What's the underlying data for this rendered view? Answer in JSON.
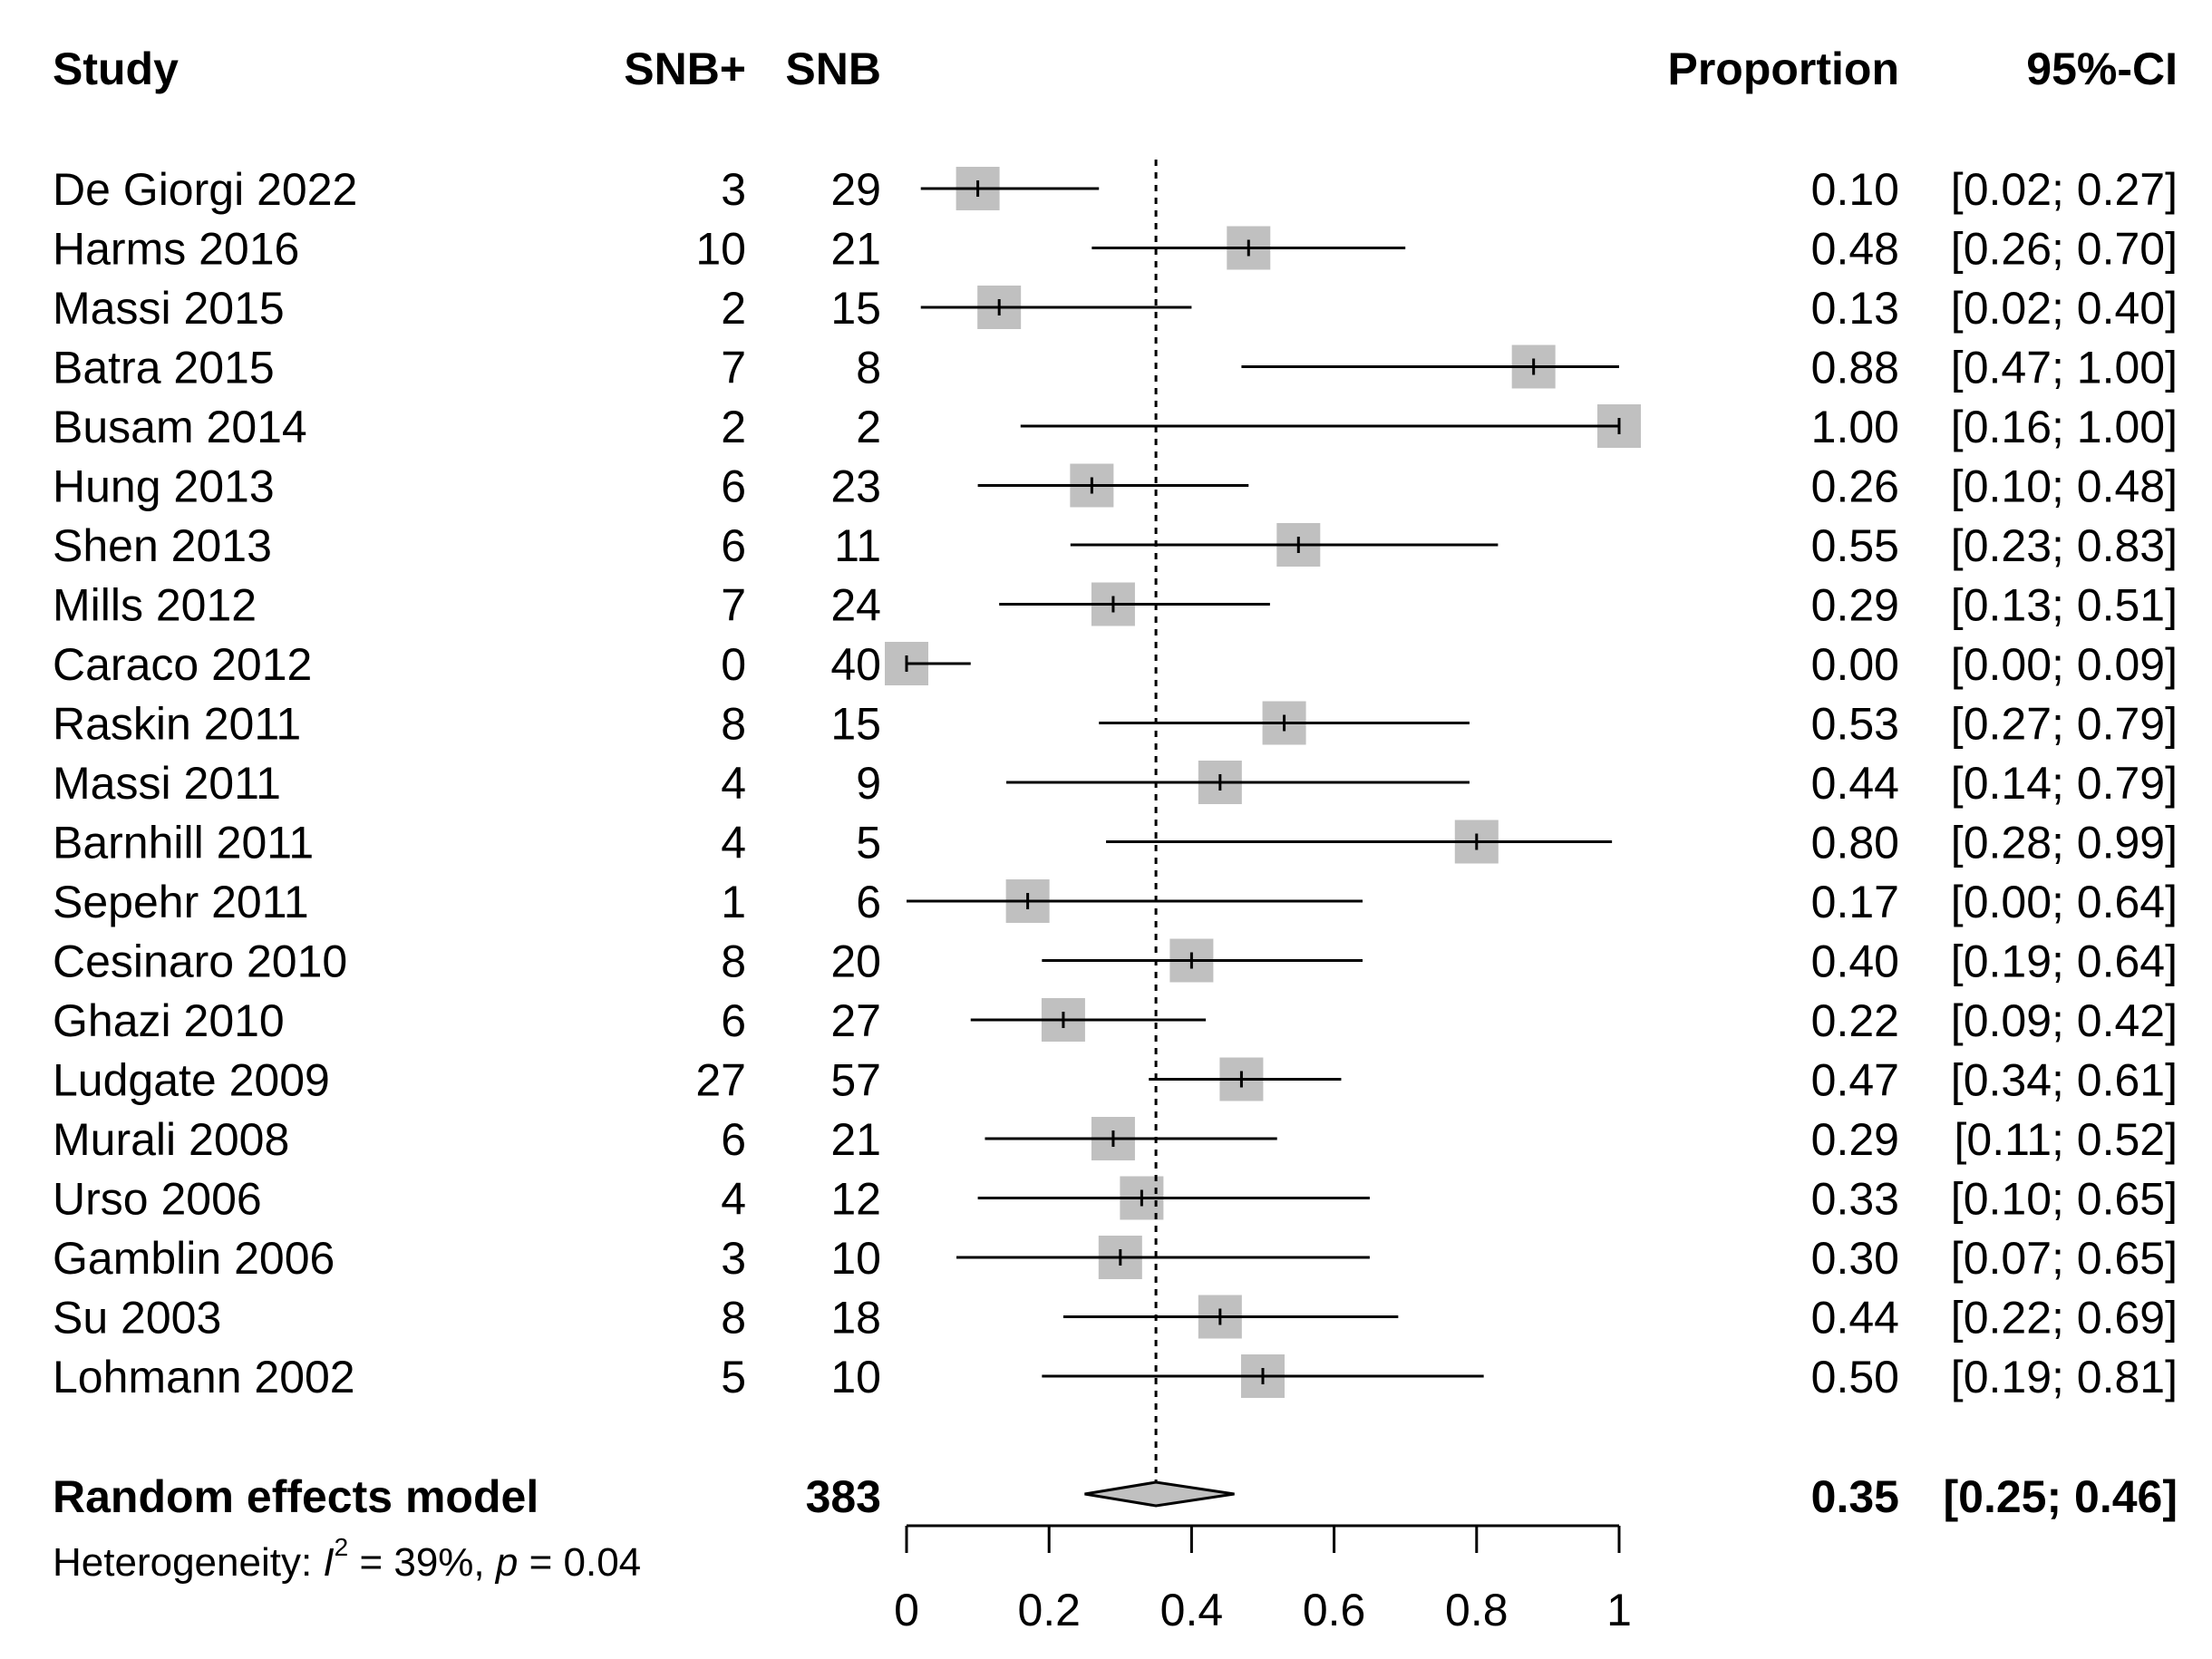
{
  "chart_data": {
    "type": "forest",
    "title": "",
    "headers": {
      "study": "Study",
      "events": "SNB+",
      "total": "SNB",
      "proportion": "Proportion",
      "ci": "95%-CI"
    },
    "studies": [
      {
        "study": "De Giorgi 2022",
        "events": "3",
        "total": "29",
        "prop_text": "0.10",
        "ci_text": "[0.02; 0.27]",
        "p": 0.1,
        "lo": 0.02,
        "hi": 0.27,
        "weight": 1.0
      },
      {
        "study": "Harms 2016",
        "events": "10",
        "total": "21",
        "prop_text": "0.48",
        "ci_text": "[0.26; 0.70]",
        "p": 0.48,
        "lo": 0.26,
        "hi": 0.7,
        "weight": 1.0
      },
      {
        "study": "Massi 2015",
        "events": "2",
        "total": "15",
        "prop_text": "0.13",
        "ci_text": "[0.02; 0.40]",
        "p": 0.13,
        "lo": 0.02,
        "hi": 0.4,
        "weight": 1.0
      },
      {
        "study": "Batra 2015",
        "events": "7",
        "total": "8",
        "prop_text": "0.88",
        "ci_text": "[0.47; 1.00]",
        "p": 0.88,
        "lo": 0.47,
        "hi": 1.0,
        "weight": 1.0
      },
      {
        "study": "Busam 2014",
        "events": "2",
        "total": "2",
        "prop_text": "1.00",
        "ci_text": "[0.16; 1.00]",
        "p": 1.0,
        "lo": 0.16,
        "hi": 1.0,
        "weight": 1.0
      },
      {
        "study": "Hung 2013",
        "events": "6",
        "total": "23",
        "prop_text": "0.26",
        "ci_text": "[0.10; 0.48]",
        "p": 0.26,
        "lo": 0.1,
        "hi": 0.48,
        "weight": 1.0
      },
      {
        "study": "Shen 2013",
        "events": "6",
        "total": "11",
        "prop_text": "0.55",
        "ci_text": "[0.23; 0.83]",
        "p": 0.55,
        "lo": 0.23,
        "hi": 0.83,
        "weight": 1.0
      },
      {
        "study": "Mills 2012",
        "events": "7",
        "total": "24",
        "prop_text": "0.29",
        "ci_text": "[0.13; 0.51]",
        "p": 0.29,
        "lo": 0.13,
        "hi": 0.51,
        "weight": 1.0
      },
      {
        "study": "Caraco 2012",
        "events": "0",
        "total": "40",
        "prop_text": "0.00",
        "ci_text": "[0.00; 0.09]",
        "p": 0.0,
        "lo": 0.0,
        "hi": 0.09,
        "weight": 1.0
      },
      {
        "study": "Raskin 2011",
        "events": "8",
        "total": "15",
        "prop_text": "0.53",
        "ci_text": "[0.27; 0.79]",
        "p": 0.53,
        "lo": 0.27,
        "hi": 0.79,
        "weight": 1.0
      },
      {
        "study": "Massi 2011",
        "events": "4",
        "total": "9",
        "prop_text": "0.44",
        "ci_text": "[0.14; 0.79]",
        "p": 0.44,
        "lo": 0.14,
        "hi": 0.79,
        "weight": 1.0
      },
      {
        "study": "Barnhill 2011",
        "events": "4",
        "total": "5",
        "prop_text": "0.80",
        "ci_text": "[0.28; 0.99]",
        "p": 0.8,
        "lo": 0.28,
        "hi": 0.99,
        "weight": 1.0
      },
      {
        "study": "Sepehr 2011",
        "events": "1",
        "total": "6",
        "prop_text": "0.17",
        "ci_text": "[0.00; 0.64]",
        "p": 0.17,
        "lo": 0.0,
        "hi": 0.64,
        "weight": 1.0
      },
      {
        "study": "Cesinaro 2010",
        "events": "8",
        "total": "20",
        "prop_text": "0.40",
        "ci_text": "[0.19; 0.64]",
        "p": 0.4,
        "lo": 0.19,
        "hi": 0.64,
        "weight": 1.0
      },
      {
        "study": "Ghazi 2010",
        "events": "6",
        "total": "27",
        "prop_text": "0.22",
        "ci_text": "[0.09; 0.42]",
        "p": 0.22,
        "lo": 0.09,
        "hi": 0.42,
        "weight": 1.0
      },
      {
        "study": "Ludgate 2009",
        "events": "27",
        "total": "57",
        "prop_text": "0.47",
        "ci_text": "[0.34; 0.61]",
        "p": 0.47,
        "lo": 0.34,
        "hi": 0.61,
        "weight": 1.0
      },
      {
        "study": "Murali 2008",
        "events": "6",
        "total": "21",
        "prop_text": "0.29",
        "ci_text": "[0.11; 0.52]",
        "p": 0.29,
        "lo": 0.11,
        "hi": 0.52,
        "weight": 1.0
      },
      {
        "study": "Urso 2006",
        "events": "4",
        "total": "12",
        "prop_text": "0.33",
        "ci_text": "[0.10; 0.65]",
        "p": 0.33,
        "lo": 0.1,
        "hi": 0.65,
        "weight": 1.0
      },
      {
        "study": "Gamblin 2006",
        "events": "3",
        "total": "10",
        "prop_text": "0.30",
        "ci_text": "[0.07; 0.65]",
        "p": 0.3,
        "lo": 0.07,
        "hi": 0.65,
        "weight": 1.0
      },
      {
        "study": "Su 2003",
        "events": "8",
        "total": "18",
        "prop_text": "0.44",
        "ci_text": "[0.22; 0.69]",
        "p": 0.44,
        "lo": 0.22,
        "hi": 0.69,
        "weight": 1.0
      },
      {
        "study": "Lohmann 2002",
        "events": "5",
        "total": "10",
        "prop_text": "0.50",
        "ci_text": "[0.19; 0.81]",
        "p": 0.5,
        "lo": 0.19,
        "hi": 0.81,
        "weight": 1.0
      }
    ],
    "pooled": {
      "label": "Random effects model",
      "total": "383",
      "prop_text": "0.35",
      "ci_text": "[0.25; 0.46]",
      "p": 0.35,
      "lo": 0.25,
      "hi": 0.46
    },
    "heterogeneity": {
      "prefix": "Heterogeneity: ",
      "i2_symbol": "I",
      "i2_exp": "2",
      "i2_value": " = 39%, ",
      "p_symbol": "p",
      "p_value": " = 0.04"
    },
    "xaxis": {
      "range": [
        0,
        1
      ],
      "ticks": [
        0,
        0.2,
        0.4,
        0.6,
        0.8,
        1
      ],
      "tick_labels": [
        "0",
        "0.2",
        "0.4",
        "0.6",
        "0.8",
        "1"
      ]
    },
    "reference_line": 0.35
  }
}
